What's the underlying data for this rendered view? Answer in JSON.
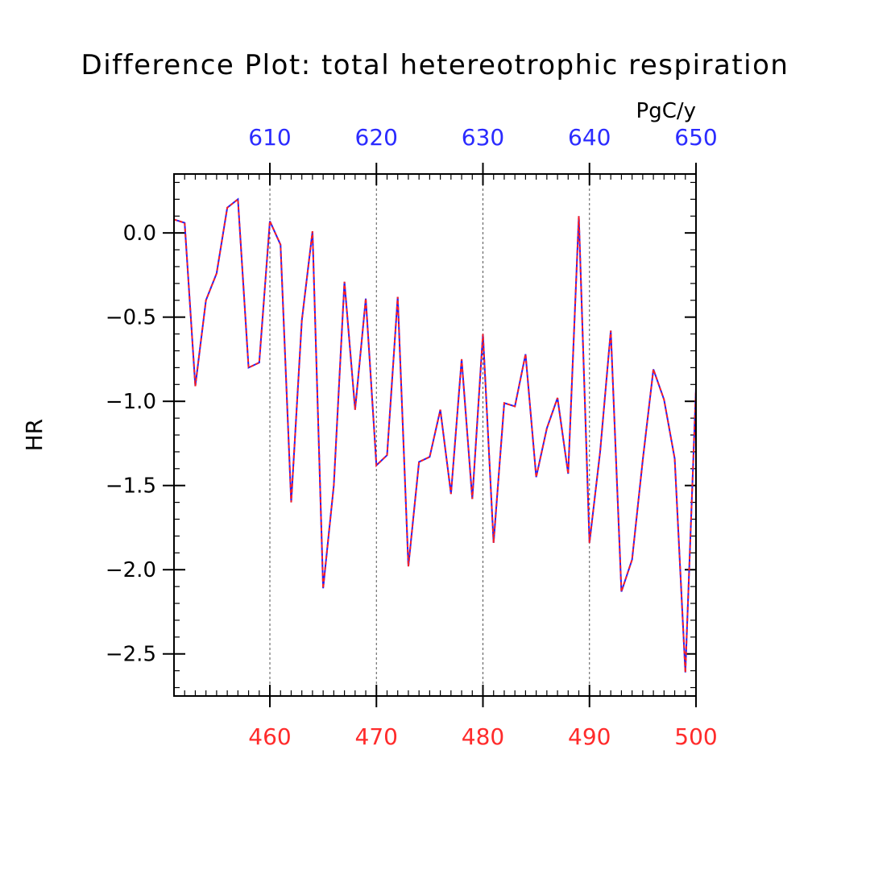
{
  "chart_data": {
    "type": "line",
    "title": "Difference Plot: total hetereotrophic respiration",
    "units": "PgC/y",
    "ylabel": "HR",
    "xlabel": "",
    "xlim": [
      451,
      500
    ],
    "ylim": [
      -2.75,
      0.35
    ],
    "top_axis": {
      "offset": 150,
      "color": "#2b2bff",
      "ticks": [
        610,
        620,
        630,
        640,
        650
      ]
    },
    "bottom_axis": {
      "color": "#ff2b2b",
      "ticks": [
        460,
        470,
        480,
        490,
        500
      ]
    },
    "y_ticks": [
      0.0,
      -0.5,
      -1.0,
      -1.5,
      -2.0,
      -2.5
    ],
    "y_tick_labels": [
      "0.0",
      "−0.5",
      "−1.0",
      "−1.5",
      "−2.0",
      "−2.5"
    ],
    "grid": "vertical dashed at major x ticks",
    "series": [
      {
        "color": "#2020ff",
        "style": "solid",
        "x": [
          451,
          452,
          453,
          454,
          455,
          456,
          457,
          458,
          459,
          460,
          461,
          462,
          463,
          464,
          465,
          466,
          467,
          468,
          469,
          470,
          471,
          472,
          473,
          474,
          475,
          476,
          477,
          478,
          479,
          480,
          481,
          482,
          483,
          484,
          485,
          486,
          487,
          488,
          489,
          490,
          491,
          492,
          493,
          494,
          495,
          496,
          497,
          498,
          499,
          500
        ],
        "y": [
          0.08,
          0.06,
          -0.91,
          -0.4,
          -0.24,
          0.15,
          0.2,
          -0.8,
          -0.77,
          0.07,
          -0.07,
          -1.6,
          -0.52,
          0.01,
          -2.11,
          -1.5,
          -0.29,
          -1.05,
          -0.39,
          -1.38,
          -1.32,
          -0.38,
          -1.98,
          -1.36,
          -1.33,
          -1.05,
          -1.55,
          -0.75,
          -1.58,
          -0.6,
          -1.84,
          -1.01,
          -1.03,
          -0.72,
          -1.45,
          -1.16,
          -0.98,
          -1.43,
          0.1,
          -1.84,
          -1.3,
          -0.58,
          -2.13,
          -1.94,
          -1.35,
          -0.81,
          -0.99,
          -1.34,
          -2.61,
          -0.92
        ]
      },
      {
        "color": "#ff2020",
        "style": "dashed",
        "x": [
          451,
          452,
          453,
          454,
          455,
          456,
          457,
          458,
          459,
          460,
          461,
          462,
          463,
          464,
          465,
          466,
          467,
          468,
          469,
          470,
          471,
          472,
          473,
          474,
          475,
          476,
          477,
          478,
          479,
          480,
          481,
          482,
          483,
          484,
          485,
          486,
          487,
          488,
          489,
          490,
          491,
          492,
          493,
          494,
          495,
          496,
          497,
          498,
          499,
          500
        ],
        "y": [
          0.08,
          0.06,
          -0.91,
          -0.4,
          -0.24,
          0.15,
          0.2,
          -0.8,
          -0.77,
          0.07,
          -0.07,
          -1.6,
          -0.52,
          0.01,
          -2.11,
          -1.5,
          -0.29,
          -1.05,
          -0.39,
          -1.38,
          -1.32,
          -0.38,
          -1.98,
          -1.36,
          -1.33,
          -1.05,
          -1.55,
          -0.75,
          -1.58,
          -0.6,
          -1.84,
          -1.01,
          -1.03,
          -0.72,
          -1.45,
          -1.16,
          -0.98,
          -1.43,
          0.1,
          -1.84,
          -1.3,
          -0.58,
          -2.13,
          -1.94,
          -1.35,
          -0.81,
          -0.99,
          -1.34,
          -2.61,
          -0.92
        ]
      }
    ]
  }
}
